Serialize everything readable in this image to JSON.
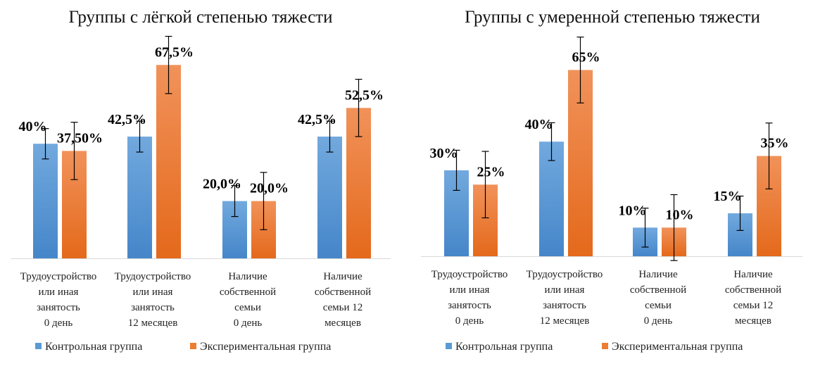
{
  "chart_data": [
    {
      "type": "bar",
      "title": "Группы с лёгкой степенью тяжести",
      "categories": [
        [
          "Трудоустройство",
          "или иная",
          "занятость",
          "0 день"
        ],
        [
          "Трудоустройство",
          "или иная",
          "занятость",
          "12 месяцев"
        ],
        [
          "Наличие",
          "собственной",
          "семьи",
          "0 день"
        ],
        [
          "Наличие",
          "собственной",
          "семьи 12",
          "месяцев"
        ]
      ],
      "series": [
        {
          "name": "Контрольная группа",
          "values": [
            40,
            42.5,
            20,
            42.5
          ],
          "labels": [
            "40%",
            "42,5%",
            "20,0%",
            "42,5%"
          ],
          "errors": [
            5.3,
            5.4,
            5.4,
            5.4
          ]
        },
        {
          "name": "Экспериментальная группа",
          "values": [
            37.5,
            67.5,
            20,
            52.5
          ],
          "labels": [
            "37,50%",
            "67,5%",
            "20,0%",
            "52,5%"
          ],
          "errors": [
            10,
            10,
            10,
            10
          ]
        }
      ],
      "ylim": [
        0,
        90
      ],
      "legend": "bottom"
    },
    {
      "type": "bar",
      "title": "Группы с умеренной степенью тяжести",
      "categories": [
        [
          "Трудоустройство",
          "или иная",
          "занятость",
          "0 день"
        ],
        [
          "Трудоустройство",
          "или иная",
          "занятость",
          "12 месяцев"
        ],
        [
          "Наличие",
          "собственной",
          "семьи",
          "0 день"
        ],
        [
          "Наличие",
          "собственной",
          "семьи 12",
          "месяцев"
        ]
      ],
      "series": [
        {
          "name": "Контрольная группа",
          "values": [
            30,
            40,
            10,
            15
          ],
          "labels": [
            "30%",
            "40%",
            "10%",
            "15%"
          ],
          "errors": [
            7,
            6.6,
            6.8,
            6
          ]
        },
        {
          "name": "Экспериментальная группа",
          "values": [
            25,
            65,
            10,
            35
          ],
          "labels": [
            "25%",
            "65%",
            "10%",
            "35%"
          ],
          "errors": [
            11.6,
            11.5,
            11.5,
            11.5
          ]
        }
      ],
      "ylim": [
        0,
        90
      ],
      "legend": "bottom"
    }
  ],
  "colors": {
    "control_top": "#72a9de",
    "control_bottom": "#4586c9",
    "exp_top": "#f1925a",
    "exp_bottom": "#e4691b"
  }
}
